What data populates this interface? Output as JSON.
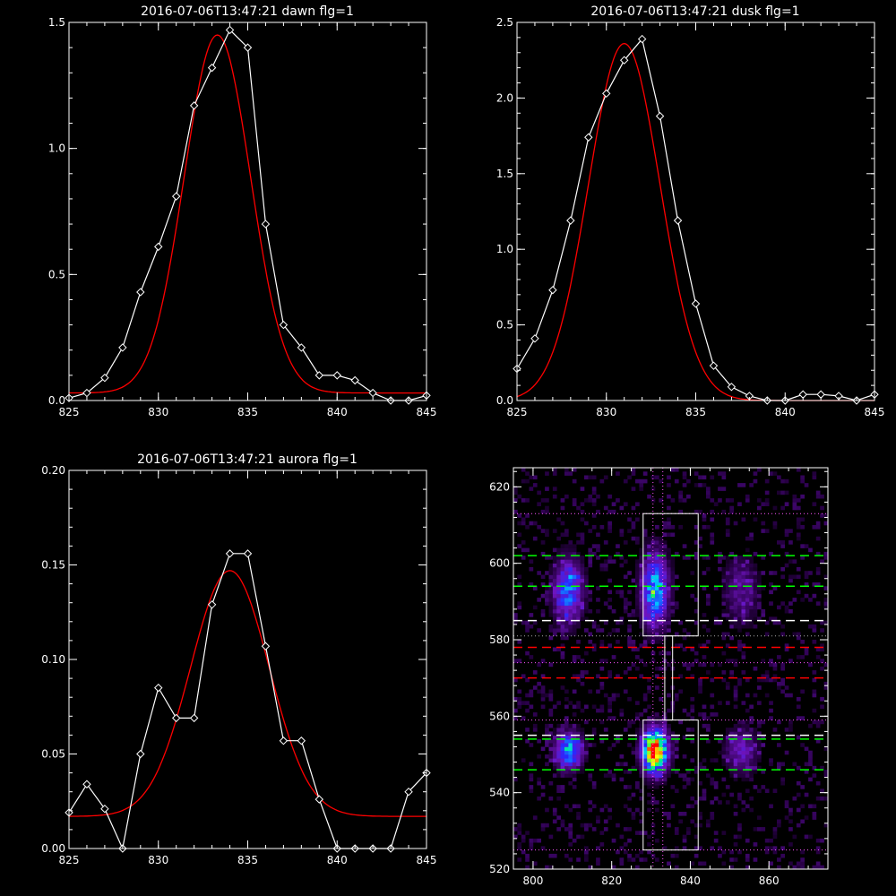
{
  "chart_data": [
    {
      "type": "line",
      "title": "2016-07-06T13:47:21 dawn flg=1",
      "xlim": [
        825,
        845
      ],
      "ylim": [
        0,
        1.5
      ],
      "xticks": [
        "825",
        "830",
        "835",
        "840",
        "845"
      ],
      "yticks": [
        "0.0",
        "0.5",
        "1.0",
        "1.5"
      ],
      "x": [
        825,
        826,
        827,
        828,
        829,
        830,
        831,
        832,
        833,
        834,
        835,
        836,
        837,
        838,
        839,
        840,
        841,
        842,
        843,
        844,
        845
      ],
      "series": [
        {
          "values": [
            0.01,
            0.03,
            0.09,
            0.21,
            0.43,
            0.61,
            0.81,
            1.17,
            1.32,
            1.47,
            1.4,
            0.7,
            0.3,
            0.21,
            0.1,
            0.1,
            0.08,
            0.03,
            0.0,
            0.0,
            0.02
          ],
          "color": "#ffffff",
          "marker": "diamond"
        }
      ],
      "fit": {
        "amplitude": 1.42,
        "center": 833.3,
        "sigma": 1.85,
        "offset": 0.03,
        "color": "#ff0000"
      }
    },
    {
      "type": "line",
      "title": "2016-07-06T13:47:21 dusk flg=1",
      "xlim": [
        825,
        845
      ],
      "ylim": [
        0,
        2.5
      ],
      "xticks": [
        "825",
        "830",
        "835",
        "840",
        "845"
      ],
      "yticks": [
        "0.0",
        "0.5",
        "1.0",
        "1.5",
        "2.0",
        "2.5"
      ],
      "x": [
        825,
        826,
        827,
        828,
        829,
        830,
        831,
        832,
        833,
        834,
        835,
        836,
        837,
        838,
        839,
        840,
        841,
        842,
        843,
        844,
        845
      ],
      "series": [
        {
          "values": [
            0.21,
            0.41,
            0.73,
            1.19,
            1.74,
            2.03,
            2.25,
            2.39,
            1.88,
            1.19,
            0.64,
            0.23,
            0.09,
            0.03,
            0.0,
            0.0,
            0.04,
            0.04,
            0.03,
            0.0,
            0.04
          ],
          "color": "#ffffff",
          "marker": "diamond"
        }
      ],
      "fit": {
        "amplitude": 2.36,
        "center": 831.0,
        "sigma": 2.0,
        "offset": 0.0,
        "color": "#ff0000"
      }
    },
    {
      "type": "line",
      "title": "2016-07-06T13:47:21 aurora flg=1",
      "xlim": [
        825,
        845
      ],
      "ylim": [
        0,
        0.2
      ],
      "xticks": [
        "825",
        "830",
        "835",
        "840",
        "845"
      ],
      "yticks": [
        "0.00",
        "0.05",
        "0.10",
        "0.15",
        "0.20"
      ],
      "x": [
        825,
        826,
        827,
        828,
        829,
        830,
        831,
        832,
        833,
        834,
        835,
        836,
        837,
        838,
        839,
        840,
        841,
        842,
        843,
        844,
        845
      ],
      "series": [
        {
          "values": [
            0.019,
            0.034,
            0.021,
            0.0,
            0.05,
            0.085,
            0.069,
            0.069,
            0.129,
            0.156,
            0.156,
            0.107,
            0.057,
            0.057,
            0.026,
            0.0,
            0.0,
            0.0,
            0.0,
            0.03,
            0.04
          ],
          "color": "#ffffff",
          "marker": "diamond"
        }
      ],
      "fit": {
        "amplitude": 0.13,
        "center": 834.0,
        "sigma": 2.2,
        "offset": 0.017,
        "color": "#ff0000"
      }
    },
    {
      "type": "heatmap",
      "title": "",
      "xlim": [
        795,
        875
      ],
      "ylim": [
        520,
        625
      ],
      "xticks": [
        "800",
        "820",
        "840",
        "860"
      ],
      "yticks": [
        "520",
        "540",
        "560",
        "580",
        "600",
        "620"
      ],
      "colormap": "rainbow",
      "blobs": [
        {
          "x": 809,
          "y": 593,
          "sx": 2.5,
          "sy": 5.5,
          "amp": 0.45
        },
        {
          "x": 831,
          "y": 593,
          "sx": 2.3,
          "sy": 6.5,
          "amp": 0.55
        },
        {
          "x": 853,
          "y": 593,
          "sx": 3.0,
          "sy": 6.0,
          "amp": 0.18
        },
        {
          "x": 809,
          "y": 551,
          "sx": 2.3,
          "sy": 3.2,
          "amp": 0.55
        },
        {
          "x": 831,
          "y": 551,
          "sx": 2.2,
          "sy": 3.8,
          "amp": 1.0
        },
        {
          "x": 853,
          "y": 551,
          "sx": 2.8,
          "sy": 4.0,
          "amp": 0.25
        }
      ],
      "boxes": [
        {
          "x0": 828,
          "x1": 842,
          "y0": 581,
          "y1": 613
        },
        {
          "x0": 828,
          "x1": 842,
          "y0": 525,
          "y1": 559
        },
        {
          "x0": 833.5,
          "x1": 835.5,
          "y0": 559,
          "y1": 581
        }
      ],
      "hlines": [
        {
          "y": 602,
          "color": "#00ff00",
          "style": "dashed"
        },
        {
          "y": 594,
          "color": "#00ff00",
          "style": "dashed"
        },
        {
          "y": 585,
          "color": "#ffffff",
          "style": "dashed"
        },
        {
          "y": 578,
          "color": "#ff0000",
          "style": "dashed"
        },
        {
          "y": 570,
          "color": "#ff0000",
          "style": "dashed"
        },
        {
          "y": 555,
          "color": "#ffffff",
          "style": "dashed"
        },
        {
          "y": 554,
          "color": "#00ff00",
          "style": "dashed"
        },
        {
          "y": 546,
          "color": "#00ff00",
          "style": "dashed"
        },
        {
          "y": 613,
          "color": "#ff55ff",
          "style": "dotted"
        },
        {
          "y": 581,
          "color": "#aaaaaa",
          "style": "dotted"
        },
        {
          "y": 574,
          "color": "#ff55ff",
          "style": "dotted"
        },
        {
          "y": 559,
          "color": "#ff55ff",
          "style": "dotted"
        },
        {
          "y": 525,
          "color": "#ff55ff",
          "style": "dotted"
        }
      ],
      "vlines": [
        {
          "x": 830.5,
          "color": "#ff55ff",
          "style": "dotted"
        },
        {
          "x": 833.0,
          "color": "#ff55ff",
          "style": "dotted"
        }
      ]
    }
  ]
}
